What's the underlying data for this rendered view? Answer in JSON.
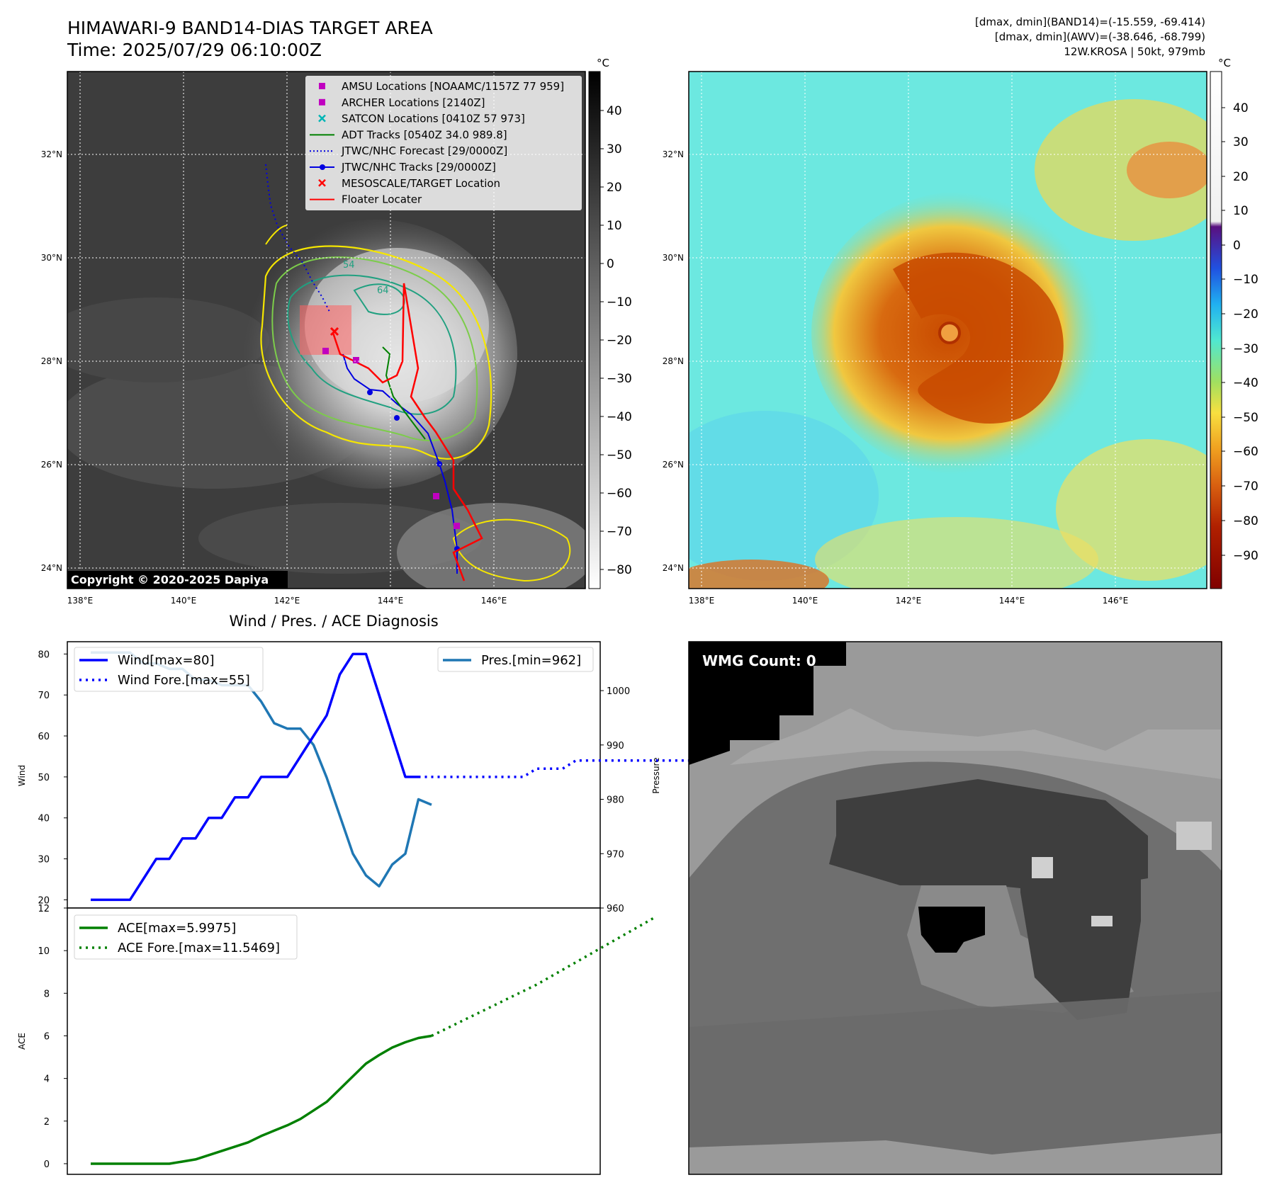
{
  "header": {
    "title_line1": "HIMAWARI-9 BAND14-DIAS TARGET AREA",
    "title_line2": "Time: 2025/07/29 06:10:00Z",
    "info_line1": "[dmax, dmin](BAND14)=(-15.559, -69.414)",
    "info_line2": "[dmax, dmin](AWV)=(-38.646, -68.799)",
    "info_line3": "12W.KROSA | 50kt, 979mb"
  },
  "map": {
    "lon_labels": [
      "138°E",
      "140°E",
      "142°E",
      "144°E",
      "146°E"
    ],
    "lat_labels": [
      "32°N",
      "30°N",
      "28°N",
      "26°N",
      "24°N"
    ],
    "copyright": "Copyright © 2020-2025 Dapiya",
    "contour_labels": [
      "54",
      "64"
    ],
    "legend": [
      {
        "label": "AMSU Locations [NOAAMC/1157Z 77 959]",
        "color": "#c000c0",
        "marker": "square"
      },
      {
        "label": "ARCHER Locations [2140Z]",
        "color": "#c000c0",
        "marker": "square"
      },
      {
        "label": "SATCON Locations [0410Z 57 973]",
        "color": "#00b5b5",
        "marker": "x"
      },
      {
        "label": "ADT Tracks [0540Z 34.0 989.8]",
        "color": "#008000",
        "marker": "line"
      },
      {
        "label": "JTWC/NHC Forecast [29/0000Z]",
        "color": "#0000e0",
        "marker": "dotted"
      },
      {
        "label": "JTWC/NHC Tracks [29/0000Z]",
        "color": "#0000e0",
        "marker": "line-dot"
      },
      {
        "label": "MESOSCALE/TARGET Location",
        "color": "#ff0000",
        "marker": "x"
      },
      {
        "label": "Floater Locater",
        "color": "#ff0000",
        "marker": "line"
      }
    ]
  },
  "colorbar_left": {
    "unit": "°C",
    "ticks": [
      "40",
      "30",
      "20",
      "10",
      "0",
      "−10",
      "−20",
      "−30",
      "−40",
      "−50",
      "−60",
      "−70",
      "−80"
    ]
  },
  "colorbar_right": {
    "unit": "°C",
    "ticks": [
      "40",
      "30",
      "20",
      "10",
      "0",
      "−10",
      "−20",
      "−30",
      "−40",
      "−50",
      "−60",
      "−70",
      "−80",
      "−90"
    ]
  },
  "diagnosis": {
    "title": "Wind / Pres. / ACE Diagnosis",
    "wind_ylabel": "Wind",
    "pres_ylabel": "Pressure",
    "ace_ylabel": "ACE",
    "wind_ticks": [
      "80",
      "70",
      "60",
      "50",
      "40",
      "30",
      "20"
    ],
    "pres_ticks": [
      "1000",
      "990",
      "980",
      "970",
      "960"
    ],
    "ace_ticks": [
      "12",
      "10",
      "8",
      "6",
      "4",
      "2",
      "0"
    ]
  },
  "wmg": {
    "label": "WMG Count: 0"
  },
  "chart_data": [
    {
      "type": "line",
      "title": "Wind / Pres. / ACE Diagnosis",
      "ylabel": "Wind",
      "ylim": [
        18,
        83
      ],
      "series": [
        {
          "name": "Wind[max=80]",
          "color": "#0000ff",
          "style": "solid",
          "values": [
            20,
            20,
            20,
            20,
            25,
            30,
            30,
            35,
            35,
            40,
            40,
            45,
            45,
            50,
            50,
            50,
            55,
            60,
            65,
            75,
            80,
            80,
            70,
            60,
            50,
            50
          ]
        },
        {
          "name": "Wind Fore.[max=55]",
          "color": "#0000ff",
          "style": "dotted",
          "values": [
            50,
            50,
            50,
            50,
            50,
            50,
            50,
            50,
            50,
            52,
            52,
            52,
            54,
            54,
            54,
            54,
            54,
            54,
            54,
            54,
            54,
            54,
            54,
            54,
            54
          ]
        }
      ]
    },
    {
      "type": "line",
      "ylabel": "Pressure",
      "ylim": [
        960,
        1009
      ],
      "series": [
        {
          "name": "Pres.[min=962]",
          "color": "#1f77b4",
          "style": "solid",
          "values": [
            1007,
            1007,
            1007,
            1007,
            1005,
            1005,
            1004,
            1004,
            1002,
            1002,
            1001,
            1001,
            1001,
            998,
            994,
            993,
            993,
            990,
            984,
            977,
            970,
            966,
            964,
            968,
            970,
            980,
            979
          ]
        }
      ]
    },
    {
      "type": "line",
      "ylabel": "ACE",
      "ylim": [
        -0.5,
        12
      ],
      "series": [
        {
          "name": "ACE[max=5.9975]",
          "color": "#008000",
          "style": "solid",
          "values": [
            0,
            0,
            0,
            0,
            0,
            0,
            0,
            0.1,
            0.2,
            0.4,
            0.6,
            0.8,
            1,
            1.3,
            1.55,
            1.8,
            2.1,
            2.5,
            2.9,
            3.5,
            4.1,
            4.7,
            5.1,
            5.45,
            5.7,
            5.9,
            6.0
          ]
        },
        {
          "name": "ACE Fore.[max=11.5469]",
          "color": "#008000",
          "style": "dotted",
          "values": [
            6.0,
            6.3,
            6.6,
            6.9,
            7.2,
            7.5,
            7.8,
            8.1,
            8.4,
            8.75,
            9.1,
            9.45,
            9.8,
            10.15,
            10.5,
            10.85,
            11.2,
            11.55
          ]
        }
      ]
    }
  ]
}
